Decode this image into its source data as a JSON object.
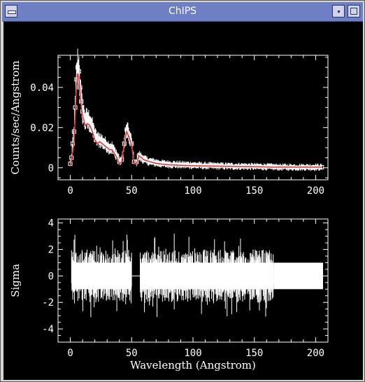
{
  "window": {
    "title": "ChIPS"
  },
  "colors": {
    "titlebar": "#6f7fc6",
    "background": "#000000",
    "foreground": "#ffffff",
    "model": "#e03030"
  },
  "icons": {
    "menu": "window-menu-icon",
    "minimize": "minimize-icon",
    "maximize": "maximize-icon"
  },
  "chart_data": [
    {
      "type": "scatter",
      "xlabel": "",
      "ylabel": "Counts/sec/Angstrom",
      "xlim": [
        -10,
        210
      ],
      "ylim": [
        -0.006,
        0.056
      ],
      "xticks": [
        "0",
        "50",
        "100",
        "150",
        "200"
      ],
      "yticks": [
        "0",
        "0.02",
        "0.04"
      ],
      "series": [
        {
          "kind": "data_points",
          "x": [
            0,
            1,
            2,
            3,
            4,
            5,
            6,
            7,
            8,
            9,
            10,
            11,
            12,
            14,
            16,
            18,
            20,
            22,
            24,
            26,
            28,
            30,
            32,
            34,
            36,
            38,
            40,
            42,
            44,
            46,
            48,
            50,
            52,
            54,
            56,
            58,
            60,
            65,
            70,
            75,
            80,
            90,
            100,
            110,
            120,
            130,
            140,
            150,
            160,
            165,
            170,
            180,
            190,
            200,
            205
          ],
          "y": [
            0.002,
            0.005,
            0.012,
            0.018,
            0.03,
            0.044,
            0.05,
            0.048,
            0.04,
            0.033,
            0.028,
            0.026,
            0.024,
            0.024,
            0.023,
            0.02,
            0.016,
            0.014,
            0.014,
            0.013,
            0.012,
            0.011,
            0.01,
            0.01,
            0.008,
            0.006,
            0.003,
            0.004,
            0.012,
            0.019,
            0.016,
            0.012,
            0.003,
            0.003,
            0.006,
            0.005,
            0.004,
            0.003,
            0.0025,
            0.002,
            0.0018,
            0.0015,
            0.0013,
            0.001,
            0.0009,
            0.0008,
            0.0007,
            0.0006,
            0.0005,
            0.0004,
            0.0003,
            0.0003,
            0.0003,
            0.0003,
            0.0003
          ]
        },
        {
          "kind": "model",
          "x": [
            0,
            1,
            2,
            3,
            4,
            5,
            6,
            7,
            8,
            9,
            10,
            11,
            12,
            14,
            16,
            18,
            20,
            22,
            24,
            26,
            28,
            30,
            32,
            34,
            36,
            38,
            40,
            42,
            44,
            46,
            48,
            50,
            52,
            54,
            56,
            58,
            60,
            65,
            70,
            75,
            80,
            90,
            100,
            110,
            120,
            130,
            140,
            150,
            160,
            165,
            170,
            180,
            190,
            200,
            205
          ],
          "y": [
            0.001,
            0.004,
            0.008,
            0.012,
            0.025,
            0.04,
            0.047,
            0.045,
            0.037,
            0.03,
            0.026,
            0.024,
            0.021,
            0.022,
            0.021,
            0.018,
            0.014,
            0.012,
            0.013,
            0.012,
            0.011,
            0.01,
            0.009,
            0.009,
            0.007,
            0.005,
            0.002,
            0.003,
            0.013,
            0.018,
            0.015,
            0.011,
            0.002,
            0.002,
            0.006,
            0.005,
            0.004,
            0.003,
            0.0022,
            0.0018,
            0.0015,
            0.0012,
            0.001,
            0.0009,
            0.0008,
            0.0007,
            0.0006,
            0.0005,
            0.0004,
            0.0003,
            0.0003,
            0.0003,
            0.0003,
            0.0003,
            0.0003
          ]
        }
      ]
    },
    {
      "type": "bar",
      "xlabel": "Wavelength (Angstrom)",
      "ylabel": "Sigma",
      "xlim": [
        -10,
        210
      ],
      "ylim": [
        -5,
        4.3
      ],
      "xticks": [
        "0",
        "50",
        "100",
        "150",
        "200"
      ],
      "yticks": [
        "-4",
        "-2",
        "0",
        "2",
        "4"
      ],
      "series": [
        {
          "kind": "residuals",
          "segments": [
            {
              "x_range": [
                1,
                50
              ],
              "max_abs": 3.5
            },
            {
              "x_range": [
                57,
                166
              ],
              "max_abs": 3.5
            },
            {
              "x_range": [
                166,
                206
              ],
              "band": [
                -1,
                1
              ]
            }
          ]
        }
      ]
    }
  ]
}
